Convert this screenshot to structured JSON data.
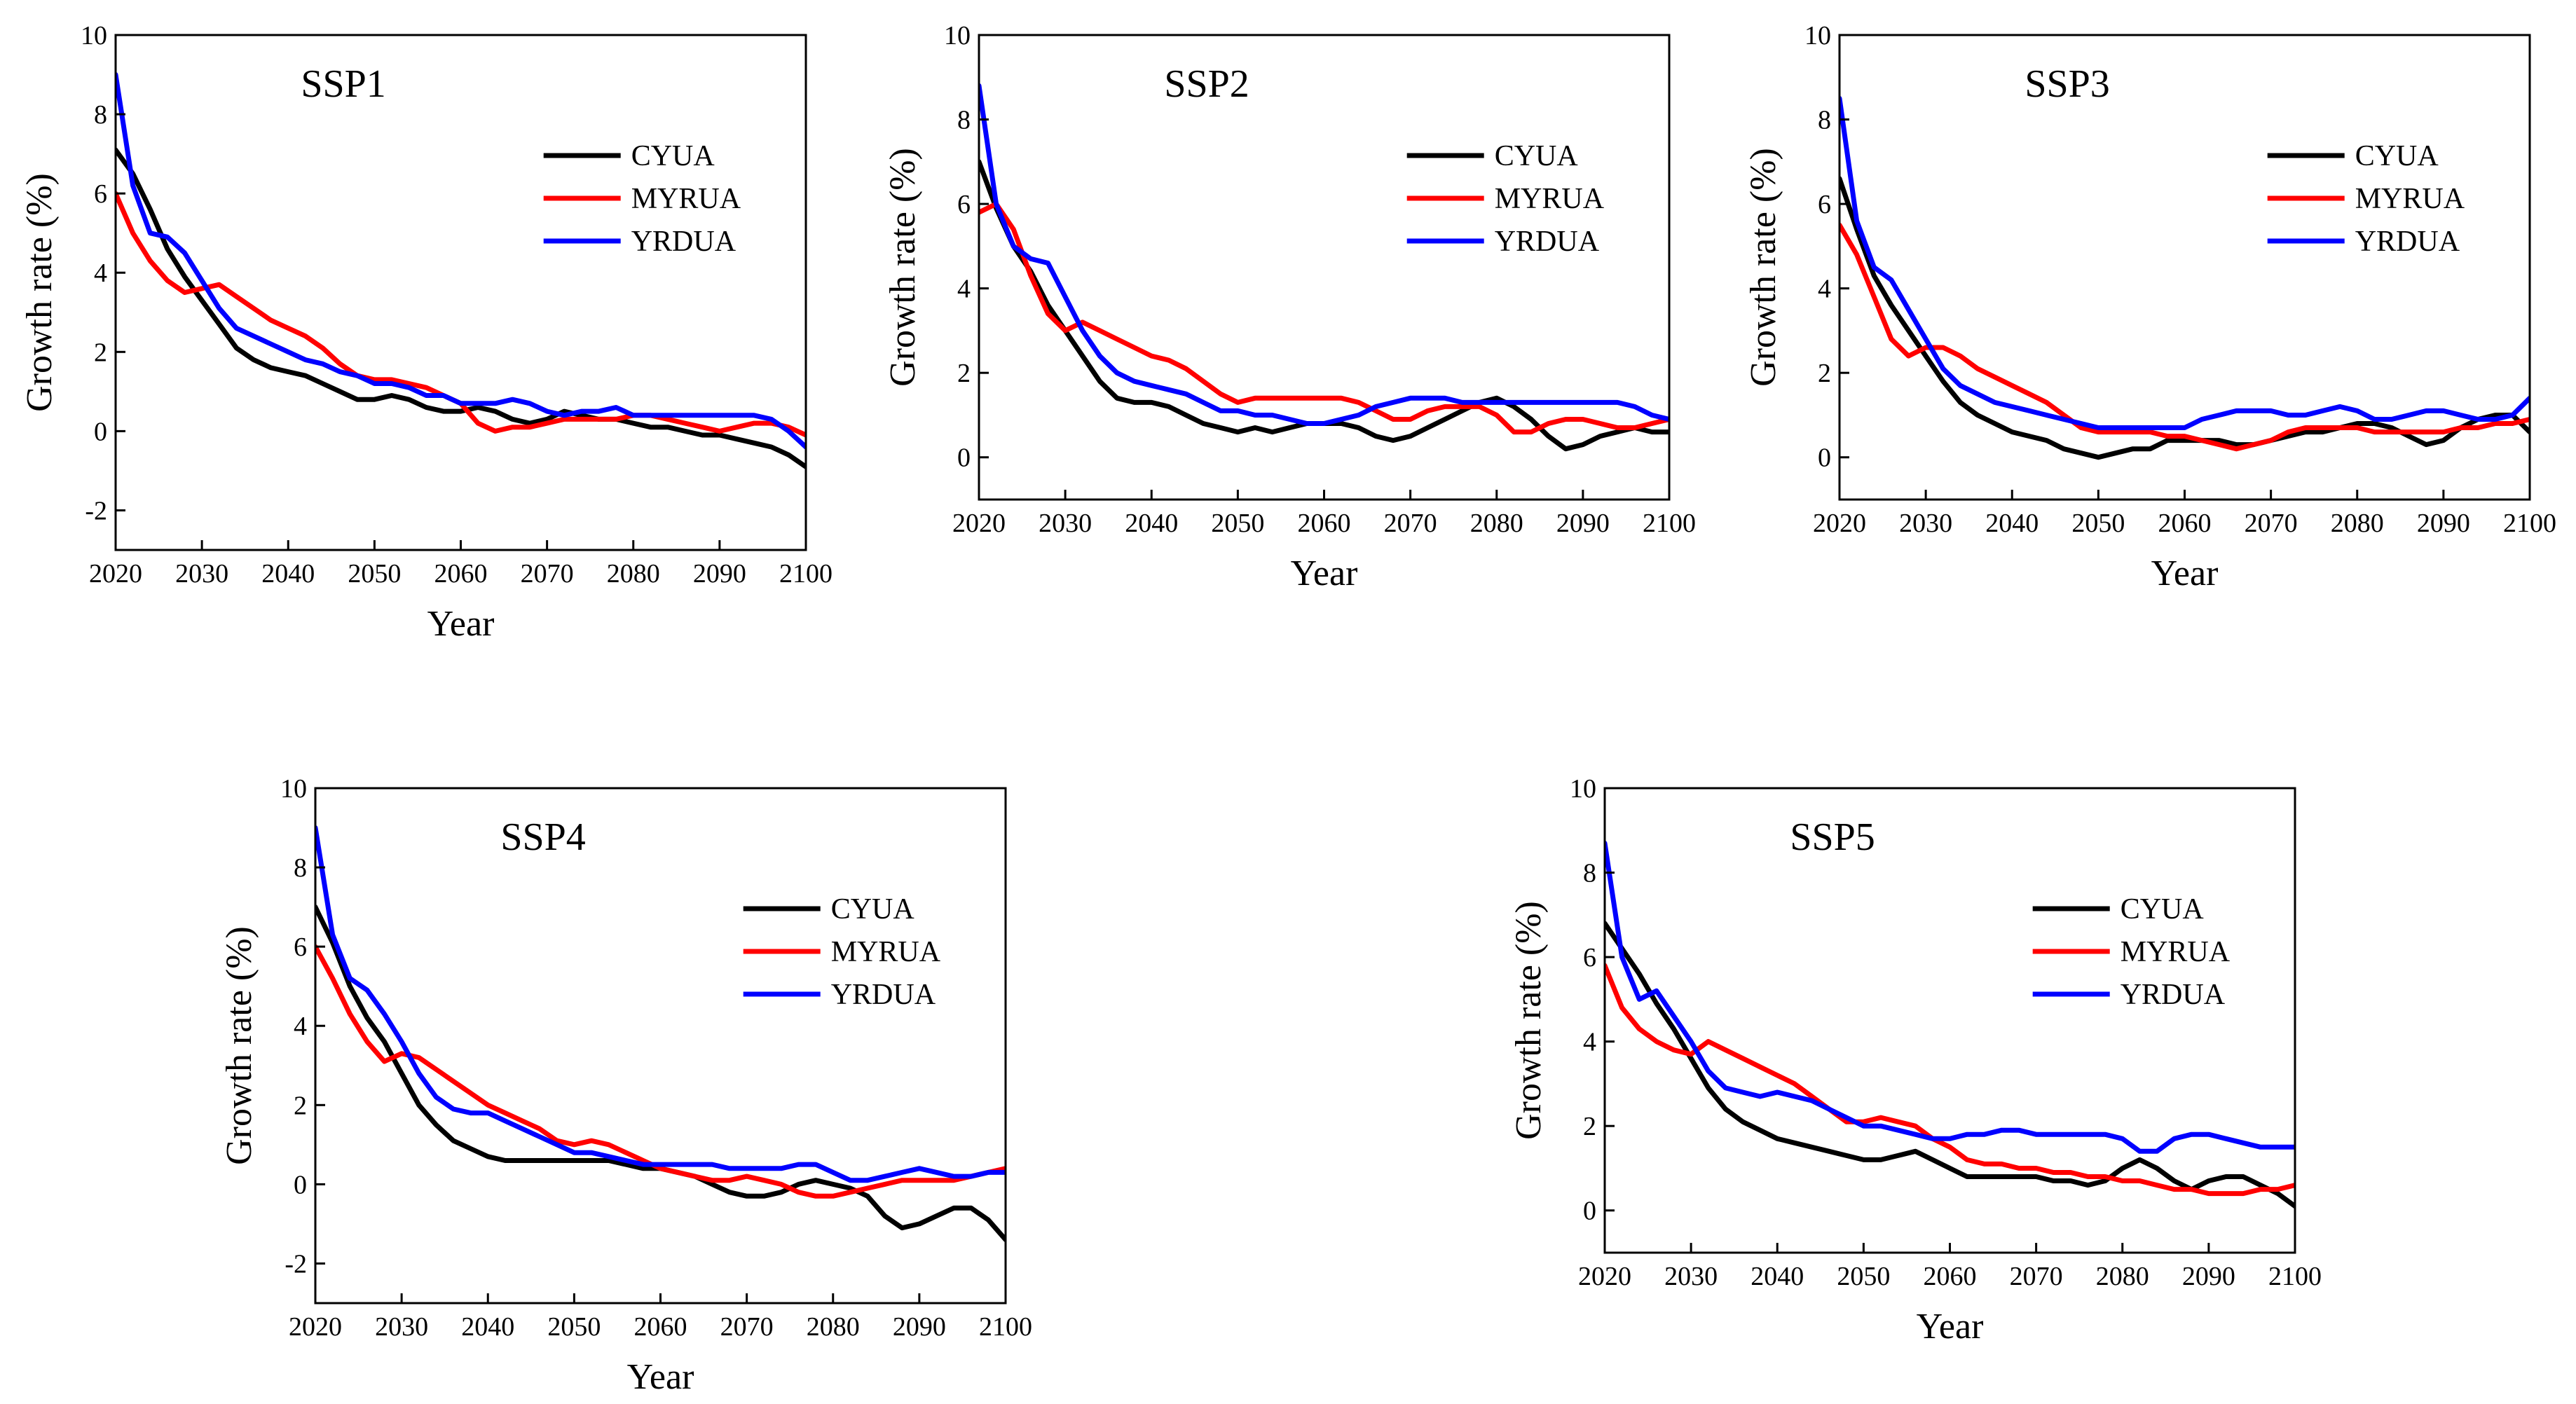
{
  "figure": {
    "series_names": [
      "CYUA",
      "MYRUA",
      "YRDUA"
    ],
    "series_colors": {
      "CYUA": "#000000",
      "MYRUA": "#ff0000",
      "YRDUA": "#0000ff"
    }
  },
  "chart_data": [
    {
      "type": "line",
      "title": "SSP1",
      "xlabel": "Year",
      "ylabel": "Growth rate (%)",
      "xlim": [
        2020,
        2100
      ],
      "ylim": [
        -3,
        10
      ],
      "xticks": [
        2020,
        2030,
        2040,
        2050,
        2060,
        2070,
        2080,
        2090,
        2100
      ],
      "yticks": [
        -2,
        0,
        2,
        4,
        6,
        8,
        10
      ],
      "legend": "top-right",
      "x": [
        2020,
        2022,
        2024,
        2026,
        2028,
        2030,
        2032,
        2034,
        2036,
        2038,
        2040,
        2042,
        2044,
        2046,
        2048,
        2050,
        2052,
        2054,
        2056,
        2058,
        2060,
        2062,
        2064,
        2066,
        2068,
        2070,
        2072,
        2074,
        2076,
        2078,
        2080,
        2082,
        2084,
        2086,
        2088,
        2090,
        2092,
        2094,
        2096,
        2098,
        2100
      ],
      "series": [
        {
          "name": "CYUA",
          "values": [
            7.1,
            6.5,
            5.6,
            4.6,
            3.9,
            3.3,
            2.7,
            2.1,
            1.8,
            1.6,
            1.5,
            1.4,
            1.2,
            1.0,
            0.8,
            0.8,
            0.9,
            0.8,
            0.6,
            0.5,
            0.5,
            0.6,
            0.5,
            0.3,
            0.2,
            0.3,
            0.5,
            0.4,
            0.3,
            0.3,
            0.2,
            0.1,
            0.1,
            0.0,
            -0.1,
            -0.1,
            -0.2,
            -0.3,
            -0.4,
            -0.6,
            -0.9
          ]
        },
        {
          "name": "MYRUA",
          "values": [
            6.0,
            5.0,
            4.3,
            3.8,
            3.5,
            3.6,
            3.7,
            3.4,
            3.1,
            2.8,
            2.6,
            2.4,
            2.1,
            1.7,
            1.4,
            1.3,
            1.3,
            1.2,
            1.1,
            0.9,
            0.7,
            0.2,
            0.0,
            0.1,
            0.1,
            0.2,
            0.3,
            0.3,
            0.3,
            0.3,
            0.4,
            0.4,
            0.3,
            0.2,
            0.1,
            0.0,
            0.1,
            0.2,
            0.2,
            0.1,
            -0.1
          ]
        },
        {
          "name": "YRDUA",
          "values": [
            9.0,
            6.2,
            5.0,
            4.9,
            4.5,
            3.8,
            3.1,
            2.6,
            2.4,
            2.2,
            2.0,
            1.8,
            1.7,
            1.5,
            1.4,
            1.2,
            1.2,
            1.1,
            0.9,
            0.9,
            0.7,
            0.7,
            0.7,
            0.8,
            0.7,
            0.5,
            0.4,
            0.5,
            0.5,
            0.6,
            0.4,
            0.4,
            0.4,
            0.4,
            0.4,
            0.4,
            0.4,
            0.4,
            0.3,
            0.0,
            -0.4
          ]
        }
      ]
    },
    {
      "type": "line",
      "title": "SSP2",
      "xlabel": "Year",
      "ylabel": "Growth rate (%)",
      "xlim": [
        2020,
        2100
      ],
      "ylim": [
        -1,
        10
      ],
      "xticks": [
        2020,
        2030,
        2040,
        2050,
        2060,
        2070,
        2080,
        2090,
        2100
      ],
      "yticks": [
        0,
        2,
        4,
        6,
        8,
        10
      ],
      "legend": "top-right",
      "x": [
        2020,
        2022,
        2024,
        2026,
        2028,
        2030,
        2032,
        2034,
        2036,
        2038,
        2040,
        2042,
        2044,
        2046,
        2048,
        2050,
        2052,
        2054,
        2056,
        2058,
        2060,
        2062,
        2064,
        2066,
        2068,
        2070,
        2072,
        2074,
        2076,
        2078,
        2080,
        2082,
        2084,
        2086,
        2088,
        2090,
        2092,
        2094,
        2096,
        2098,
        2100
      ],
      "series": [
        {
          "name": "CYUA",
          "values": [
            7.0,
            5.9,
            5.0,
            4.4,
            3.6,
            3.0,
            2.4,
            1.8,
            1.4,
            1.3,
            1.3,
            1.2,
            1.0,
            0.8,
            0.7,
            0.6,
            0.7,
            0.6,
            0.7,
            0.8,
            0.8,
            0.8,
            0.7,
            0.5,
            0.4,
            0.5,
            0.7,
            0.9,
            1.1,
            1.3,
            1.4,
            1.2,
            0.9,
            0.5,
            0.2,
            0.3,
            0.5,
            0.6,
            0.7,
            0.6,
            0.6
          ]
        },
        {
          "name": "MYRUA",
          "values": [
            5.8,
            6.0,
            5.4,
            4.3,
            3.4,
            3.0,
            3.2,
            3.0,
            2.8,
            2.6,
            2.4,
            2.3,
            2.1,
            1.8,
            1.5,
            1.3,
            1.4,
            1.4,
            1.4,
            1.4,
            1.4,
            1.4,
            1.3,
            1.1,
            0.9,
            0.9,
            1.1,
            1.2,
            1.2,
            1.2,
            1.0,
            0.6,
            0.6,
            0.8,
            0.9,
            0.9,
            0.8,
            0.7,
            0.7,
            0.8,
            0.9
          ]
        },
        {
          "name": "YRDUA",
          "values": [
            8.8,
            6.0,
            5.0,
            4.7,
            4.6,
            3.8,
            3.0,
            2.4,
            2.0,
            1.8,
            1.7,
            1.6,
            1.5,
            1.3,
            1.1,
            1.1,
            1.0,
            1.0,
            0.9,
            0.8,
            0.8,
            0.9,
            1.0,
            1.2,
            1.3,
            1.4,
            1.4,
            1.4,
            1.3,
            1.3,
            1.3,
            1.3,
            1.3,
            1.3,
            1.3,
            1.3,
            1.3,
            1.3,
            1.2,
            1.0,
            0.9
          ]
        }
      ]
    },
    {
      "type": "line",
      "title": "SSP3",
      "xlabel": "Year",
      "ylabel": "Growth rate (%)",
      "xlim": [
        2020,
        2100
      ],
      "ylim": [
        -1,
        10
      ],
      "xticks": [
        2020,
        2030,
        2040,
        2050,
        2060,
        2070,
        2080,
        2090,
        2100
      ],
      "yticks": [
        0,
        2,
        4,
        6,
        8,
        10
      ],
      "legend": "top-right",
      "x": [
        2020,
        2022,
        2024,
        2026,
        2028,
        2030,
        2032,
        2034,
        2036,
        2038,
        2040,
        2042,
        2044,
        2046,
        2048,
        2050,
        2052,
        2054,
        2056,
        2058,
        2060,
        2062,
        2064,
        2066,
        2068,
        2070,
        2072,
        2074,
        2076,
        2078,
        2080,
        2082,
        2084,
        2086,
        2088,
        2090,
        2092,
        2094,
        2096,
        2098,
        2100
      ],
      "series": [
        {
          "name": "CYUA",
          "values": [
            6.6,
            5.4,
            4.3,
            3.6,
            3.0,
            2.4,
            1.8,
            1.3,
            1.0,
            0.8,
            0.6,
            0.5,
            0.4,
            0.2,
            0.1,
            0.0,
            0.1,
            0.2,
            0.2,
            0.4,
            0.4,
            0.4,
            0.4,
            0.3,
            0.3,
            0.4,
            0.5,
            0.6,
            0.6,
            0.7,
            0.8,
            0.8,
            0.7,
            0.5,
            0.3,
            0.4,
            0.7,
            0.9,
            1.0,
            1.0,
            0.6
          ]
        },
        {
          "name": "MYRUA",
          "values": [
            5.5,
            4.8,
            3.8,
            2.8,
            2.4,
            2.6,
            2.6,
            2.4,
            2.1,
            1.9,
            1.7,
            1.5,
            1.3,
            1.0,
            0.7,
            0.6,
            0.6,
            0.6,
            0.6,
            0.5,
            0.5,
            0.4,
            0.3,
            0.2,
            0.3,
            0.4,
            0.6,
            0.7,
            0.7,
            0.7,
            0.7,
            0.6,
            0.6,
            0.6,
            0.6,
            0.6,
            0.7,
            0.7,
            0.8,
            0.8,
            0.9
          ]
        },
        {
          "name": "YRDUA",
          "values": [
            8.5,
            5.6,
            4.5,
            4.2,
            3.5,
            2.8,
            2.1,
            1.7,
            1.5,
            1.3,
            1.2,
            1.1,
            1.0,
            0.9,
            0.8,
            0.7,
            0.7,
            0.7,
            0.7,
            0.7,
            0.7,
            0.9,
            1.0,
            1.1,
            1.1,
            1.1,
            1.0,
            1.0,
            1.1,
            1.2,
            1.1,
            0.9,
            0.9,
            1.0,
            1.1,
            1.1,
            1.0,
            0.9,
            0.9,
            1.0,
            1.4
          ]
        }
      ]
    },
    {
      "type": "line",
      "title": "SSP4",
      "xlabel": "Year",
      "ylabel": "Growth rate (%)",
      "xlim": [
        2020,
        2100
      ],
      "ylim": [
        -3,
        10
      ],
      "xticks": [
        2020,
        2030,
        2040,
        2050,
        2060,
        2070,
        2080,
        2090,
        2100
      ],
      "yticks": [
        -2,
        0,
        2,
        4,
        6,
        8,
        10
      ],
      "legend": "top-right",
      "x": [
        2020,
        2022,
        2024,
        2026,
        2028,
        2030,
        2032,
        2034,
        2036,
        2038,
        2040,
        2042,
        2044,
        2046,
        2048,
        2050,
        2052,
        2054,
        2056,
        2058,
        2060,
        2062,
        2064,
        2066,
        2068,
        2070,
        2072,
        2074,
        2076,
        2078,
        2080,
        2082,
        2084,
        2086,
        2088,
        2090,
        2092,
        2094,
        2096,
        2098,
        2100
      ],
      "series": [
        {
          "name": "CYUA",
          "values": [
            7.0,
            6.1,
            5.0,
            4.2,
            3.6,
            2.8,
            2.0,
            1.5,
            1.1,
            0.9,
            0.7,
            0.6,
            0.6,
            0.6,
            0.6,
            0.6,
            0.6,
            0.6,
            0.5,
            0.4,
            0.4,
            0.3,
            0.2,
            0.0,
            -0.2,
            -0.3,
            -0.3,
            -0.2,
            0.0,
            0.1,
            0.0,
            -0.1,
            -0.3,
            -0.8,
            -1.1,
            -1.0,
            -0.8,
            -0.6,
            -0.6,
            -0.9,
            -1.4
          ]
        },
        {
          "name": "MYRUA",
          "values": [
            6.0,
            5.2,
            4.3,
            3.6,
            3.1,
            3.3,
            3.2,
            2.9,
            2.6,
            2.3,
            2.0,
            1.8,
            1.6,
            1.4,
            1.1,
            1.0,
            1.1,
            1.0,
            0.8,
            0.6,
            0.4,
            0.3,
            0.2,
            0.1,
            0.1,
            0.2,
            0.1,
            0.0,
            -0.2,
            -0.3,
            -0.3,
            -0.2,
            -0.1,
            0.0,
            0.1,
            0.1,
            0.1,
            0.1,
            0.2,
            0.3,
            0.4
          ]
        },
        {
          "name": "YRDUA",
          "values": [
            9.0,
            6.3,
            5.2,
            4.9,
            4.3,
            3.6,
            2.8,
            2.2,
            1.9,
            1.8,
            1.8,
            1.6,
            1.4,
            1.2,
            1.0,
            0.8,
            0.8,
            0.7,
            0.6,
            0.5,
            0.5,
            0.5,
            0.5,
            0.5,
            0.4,
            0.4,
            0.4,
            0.4,
            0.5,
            0.5,
            0.3,
            0.1,
            0.1,
            0.2,
            0.3,
            0.4,
            0.3,
            0.2,
            0.2,
            0.3,
            0.3
          ]
        }
      ]
    },
    {
      "type": "line",
      "title": "SSP5",
      "xlabel": "Year",
      "ylabel": "Growth rate (%)",
      "xlim": [
        2020,
        2100
      ],
      "ylim": [
        -1,
        10
      ],
      "xticks": [
        2020,
        2030,
        2040,
        2050,
        2060,
        2070,
        2080,
        2090,
        2100
      ],
      "yticks": [
        0,
        2,
        4,
        6,
        8,
        10
      ],
      "legend": "top-right",
      "x": [
        2020,
        2022,
        2024,
        2026,
        2028,
        2030,
        2032,
        2034,
        2036,
        2038,
        2040,
        2042,
        2044,
        2046,
        2048,
        2050,
        2052,
        2054,
        2056,
        2058,
        2060,
        2062,
        2064,
        2066,
        2068,
        2070,
        2072,
        2074,
        2076,
        2078,
        2080,
        2082,
        2084,
        2086,
        2088,
        2090,
        2092,
        2094,
        2096,
        2098,
        2100
      ],
      "series": [
        {
          "name": "CYUA",
          "values": [
            6.8,
            6.2,
            5.6,
            4.9,
            4.3,
            3.6,
            2.9,
            2.4,
            2.1,
            1.9,
            1.7,
            1.6,
            1.5,
            1.4,
            1.3,
            1.2,
            1.2,
            1.3,
            1.4,
            1.2,
            1.0,
            0.8,
            0.8,
            0.8,
            0.8,
            0.8,
            0.7,
            0.7,
            0.6,
            0.7,
            1.0,
            1.2,
            1.0,
            0.7,
            0.5,
            0.7,
            0.8,
            0.8,
            0.6,
            0.4,
            0.1
          ]
        },
        {
          "name": "MYRUA",
          "values": [
            5.8,
            4.8,
            4.3,
            4.0,
            3.8,
            3.7,
            4.0,
            3.8,
            3.6,
            3.4,
            3.2,
            3.0,
            2.7,
            2.4,
            2.1,
            2.1,
            2.2,
            2.1,
            2.0,
            1.7,
            1.5,
            1.2,
            1.1,
            1.1,
            1.0,
            1.0,
            0.9,
            0.9,
            0.8,
            0.8,
            0.7,
            0.7,
            0.6,
            0.5,
            0.5,
            0.4,
            0.4,
            0.4,
            0.5,
            0.5,
            0.6
          ]
        },
        {
          "name": "YRDUA",
          "values": [
            8.7,
            6.0,
            5.0,
            5.2,
            4.6,
            4.0,
            3.3,
            2.9,
            2.8,
            2.7,
            2.8,
            2.7,
            2.6,
            2.4,
            2.2,
            2.0,
            2.0,
            1.9,
            1.8,
            1.7,
            1.7,
            1.8,
            1.8,
            1.9,
            1.9,
            1.8,
            1.8,
            1.8,
            1.8,
            1.8,
            1.7,
            1.4,
            1.4,
            1.7,
            1.8,
            1.8,
            1.7,
            1.6,
            1.5,
            1.5,
            1.5
          ]
        }
      ]
    }
  ]
}
